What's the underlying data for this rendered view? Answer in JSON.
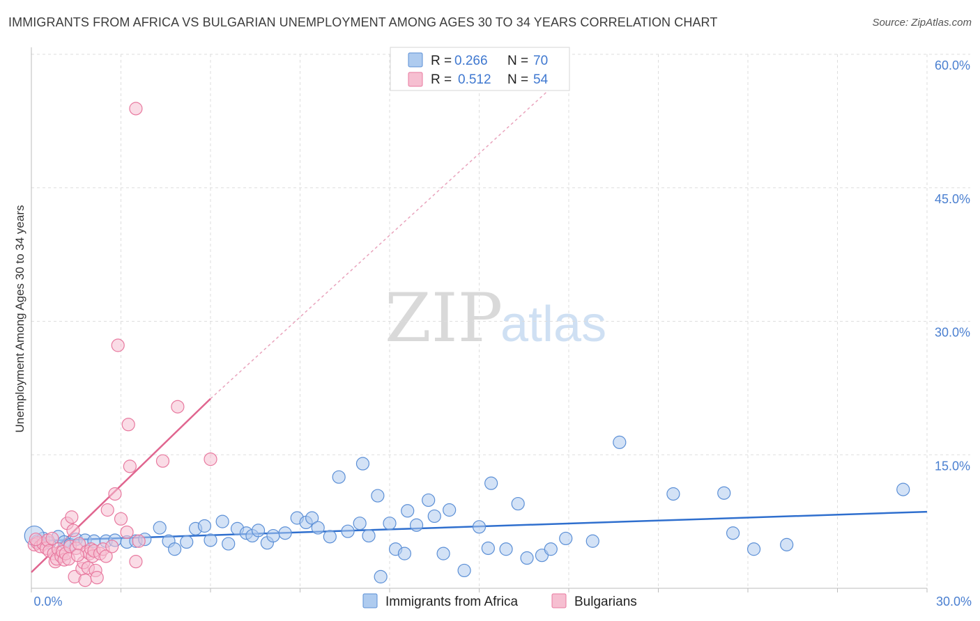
{
  "header": {
    "title": "IMMIGRANTS FROM AFRICA VS BULGARIAN UNEMPLOYMENT AMONG AGES 30 TO 34 YEARS CORRELATION CHART",
    "source": "Source: ZipAtlas.com"
  },
  "watermark": {
    "zip": "ZIP",
    "atlas": "atlas"
  },
  "legend": {
    "rows": [
      {
        "r_label": "R = ",
        "r_value": "0.266",
        "n_label": "N = ",
        "n_value": "70"
      },
      {
        "r_label": "R = ",
        "r_value": "0.512",
        "n_label": "N = ",
        "n_value": "54"
      }
    ]
  },
  "bottom_legend": {
    "items": [
      {
        "label": "Immigrants from Africa"
      },
      {
        "label": "Bulgarians"
      }
    ]
  },
  "colors": {
    "blue_fill": "#aecbef",
    "blue_stroke": "#5b8fd6",
    "blue_line": "#2f6fce",
    "pink_fill": "#f6bfd1",
    "pink_stroke": "#e8799f",
    "pink_line": "#e0658f",
    "tick": "#4a7fd0",
    "grid": "#dddddd"
  },
  "chart_data": {
    "type": "scatter",
    "title": "IMMIGRANTS FROM AFRICA VS BULGARIAN UNEMPLOYMENT AMONG AGES 30 TO 34 YEARS CORRELATION CHART",
    "xlabel": "",
    "ylabel": "Unemployment Among Ages 30 to 34 years",
    "xlim": [
      0,
      30
    ],
    "ylim": [
      0,
      60
    ],
    "x_ticks": [
      "0.0%",
      "30.0%"
    ],
    "y_ticks": [
      {
        "value": 15,
        "label": "15.0%"
      },
      {
        "value": 30,
        "label": "30.0%"
      },
      {
        "value": 45,
        "label": "45.0%"
      },
      {
        "value": 60,
        "label": "60.0%"
      }
    ],
    "grid": true,
    "series": [
      {
        "name": "Immigrants from Africa",
        "color": "#5b8fd6",
        "trend": {
          "x0": 0,
          "y0": 5.3,
          "x1": 30,
          "y1": 8.6,
          "dashed_from": null
        },
        "points": [
          [
            0.2,
            5.3
          ],
          [
            0.4,
            5.6
          ],
          [
            0.6,
            5.1
          ],
          [
            0.9,
            5.8
          ],
          [
            1.1,
            5.2
          ],
          [
            1.3,
            4.9
          ],
          [
            1.5,
            5.5
          ],
          [
            1.8,
            5.4
          ],
          [
            2.1,
            5.3
          ],
          [
            2.5,
            5.3
          ],
          [
            2.8,
            5.4
          ],
          [
            3.2,
            5.2
          ],
          [
            3.5,
            5.3
          ],
          [
            3.8,
            5.5
          ],
          [
            4.3,
            6.8
          ],
          [
            4.6,
            5.3
          ],
          [
            4.8,
            4.4
          ],
          [
            5.2,
            5.2
          ],
          [
            5.5,
            6.7
          ],
          [
            5.8,
            7.0
          ],
          [
            6.0,
            5.4
          ],
          [
            6.4,
            7.5
          ],
          [
            6.6,
            5.0
          ],
          [
            6.9,
            6.7
          ],
          [
            7.2,
            6.2
          ],
          [
            7.4,
            5.9
          ],
          [
            7.6,
            6.5
          ],
          [
            7.9,
            5.1
          ],
          [
            8.1,
            5.9
          ],
          [
            8.5,
            6.2
          ],
          [
            8.9,
            7.9
          ],
          [
            9.2,
            7.4
          ],
          [
            9.4,
            7.9
          ],
          [
            9.6,
            6.8
          ],
          [
            10.0,
            5.8
          ],
          [
            10.3,
            12.5
          ],
          [
            10.6,
            6.4
          ],
          [
            11.0,
            7.3
          ],
          [
            11.1,
            14.0
          ],
          [
            11.3,
            5.9
          ],
          [
            11.6,
            10.4
          ],
          [
            11.7,
            1.3
          ],
          [
            12.0,
            7.3
          ],
          [
            12.2,
            4.4
          ],
          [
            12.5,
            3.9
          ],
          [
            12.6,
            8.7
          ],
          [
            12.9,
            7.1
          ],
          [
            13.3,
            9.9
          ],
          [
            13.5,
            8.1
          ],
          [
            13.8,
            3.9
          ],
          [
            14.0,
            8.8
          ],
          [
            14.5,
            2.0
          ],
          [
            15.0,
            6.9
          ],
          [
            15.3,
            4.5
          ],
          [
            15.4,
            11.8
          ],
          [
            15.9,
            4.4
          ],
          [
            16.3,
            9.5
          ],
          [
            16.6,
            3.4
          ],
          [
            17.1,
            3.7
          ],
          [
            17.4,
            4.4
          ],
          [
            17.9,
            5.6
          ],
          [
            18.8,
            5.3
          ],
          [
            19.7,
            16.4
          ],
          [
            21.5,
            10.6
          ],
          [
            23.2,
            10.7
          ],
          [
            23.5,
            6.2
          ],
          [
            24.2,
            4.4
          ],
          [
            25.3,
            4.9
          ],
          [
            29.2,
            11.1
          ],
          [
            0.1,
            5.9
          ]
        ]
      },
      {
        "name": "Bulgarians",
        "color": "#e8799f",
        "trend": {
          "x0": 0,
          "y0": 1.8,
          "x1": 6.0,
          "y1": 21.3,
          "dashed_to": {
            "x": 17.5,
            "y": 56.5
          }
        },
        "points": [
          [
            0.1,
            4.9
          ],
          [
            0.2,
            5.1
          ],
          [
            0.3,
            4.7
          ],
          [
            0.4,
            5.0
          ],
          [
            0.5,
            4.5
          ],
          [
            0.55,
            5.4
          ],
          [
            0.6,
            4.2
          ],
          [
            0.7,
            5.6
          ],
          [
            0.75,
            3.9
          ],
          [
            0.8,
            3.0
          ],
          [
            0.85,
            3.3
          ],
          [
            0.9,
            4.4
          ],
          [
            1.0,
            3.6
          ],
          [
            1.05,
            4.1
          ],
          [
            1.1,
            3.2
          ],
          [
            1.15,
            3.9
          ],
          [
            1.2,
            7.3
          ],
          [
            1.25,
            3.3
          ],
          [
            1.3,
            4.7
          ],
          [
            1.35,
            8.0
          ],
          [
            1.4,
            6.5
          ],
          [
            1.45,
            1.3
          ],
          [
            1.5,
            4.5
          ],
          [
            1.6,
            5.0
          ],
          [
            1.7,
            2.2
          ],
          [
            1.75,
            2.9
          ],
          [
            1.8,
            0.9
          ],
          [
            1.85,
            4.1
          ],
          [
            1.9,
            2.3
          ],
          [
            1.95,
            3.9
          ],
          [
            2.0,
            4.4
          ],
          [
            2.05,
            3.6
          ],
          [
            2.1,
            4.2
          ],
          [
            2.15,
            2.0
          ],
          [
            2.2,
            1.2
          ],
          [
            2.3,
            3.9
          ],
          [
            2.4,
            4.4
          ],
          [
            2.5,
            3.6
          ],
          [
            2.55,
            8.8
          ],
          [
            2.7,
            4.7
          ],
          [
            2.8,
            10.6
          ],
          [
            3.0,
            7.8
          ],
          [
            2.9,
            27.3
          ],
          [
            3.2,
            6.3
          ],
          [
            3.25,
            18.4
          ],
          [
            3.3,
            13.7
          ],
          [
            3.5,
            53.9
          ],
          [
            3.5,
            3.0
          ],
          [
            3.6,
            5.3
          ],
          [
            4.4,
            14.3
          ],
          [
            4.9,
            20.4
          ],
          [
            6.0,
            14.5
          ],
          [
            0.15,
            5.5
          ],
          [
            1.55,
            3.7
          ]
        ]
      }
    ]
  }
}
